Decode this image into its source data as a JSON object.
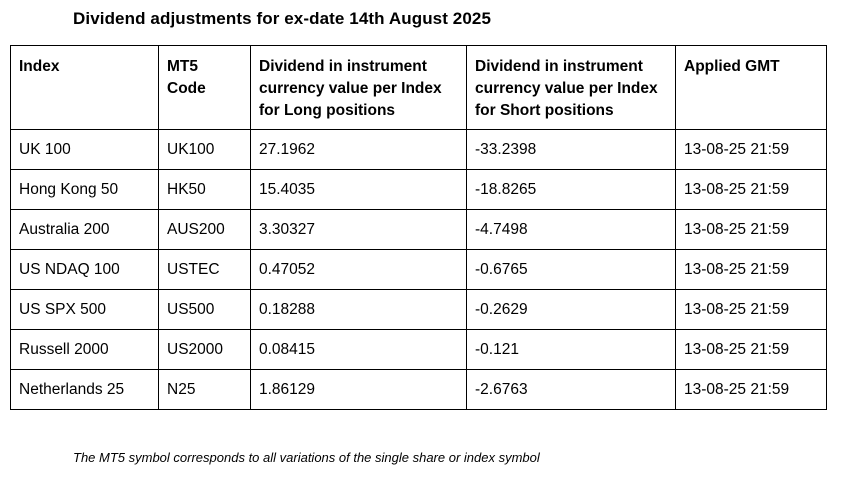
{
  "title": "Dividend adjustments for ex-date 14th August 2025",
  "table": {
    "headers": [
      "Index",
      "MT5 Code",
      "Dividend in instrument currency value per Index for Long positions",
      "Dividend in instrument currency value per Index for Short positions",
      "Applied GMT"
    ],
    "header_lines": [
      [
        "Index"
      ],
      [
        "MT5",
        "Code"
      ],
      [
        "Dividend in instrument",
        "currency value per Index",
        "for Long positions"
      ],
      [
        "Dividend in instrument",
        "currency value per Index",
        "for Short positions"
      ],
      [
        "Applied GMT"
      ]
    ],
    "rows": [
      [
        "UK 100",
        "UK100",
        "27.1962",
        "-33.2398",
        "13-08-25 21:59"
      ],
      [
        "Hong Kong 50",
        "HK50",
        "15.4035",
        "-18.8265",
        "13-08-25 21:59"
      ],
      [
        "Australia 200",
        "AUS200",
        "3.30327",
        "-4.7498",
        "13-08-25 21:59"
      ],
      [
        "US NDAQ 100",
        "USTEC",
        "0.47052",
        "-0.6765",
        "13-08-25 21:59"
      ],
      [
        "US SPX 500",
        "US500",
        "0.18288",
        "-0.2629",
        "13-08-25 21:59"
      ],
      [
        "Russell 2000",
        "US2000",
        "0.08415",
        "-0.121",
        "13-08-25 21:59"
      ],
      [
        "Netherlands 25",
        "N25",
        "1.86129",
        "-2.6763",
        "13-08-25 21:59"
      ]
    ]
  },
  "footnote": "The MT5 symbol corresponds to all variations of the single share or index symbol"
}
